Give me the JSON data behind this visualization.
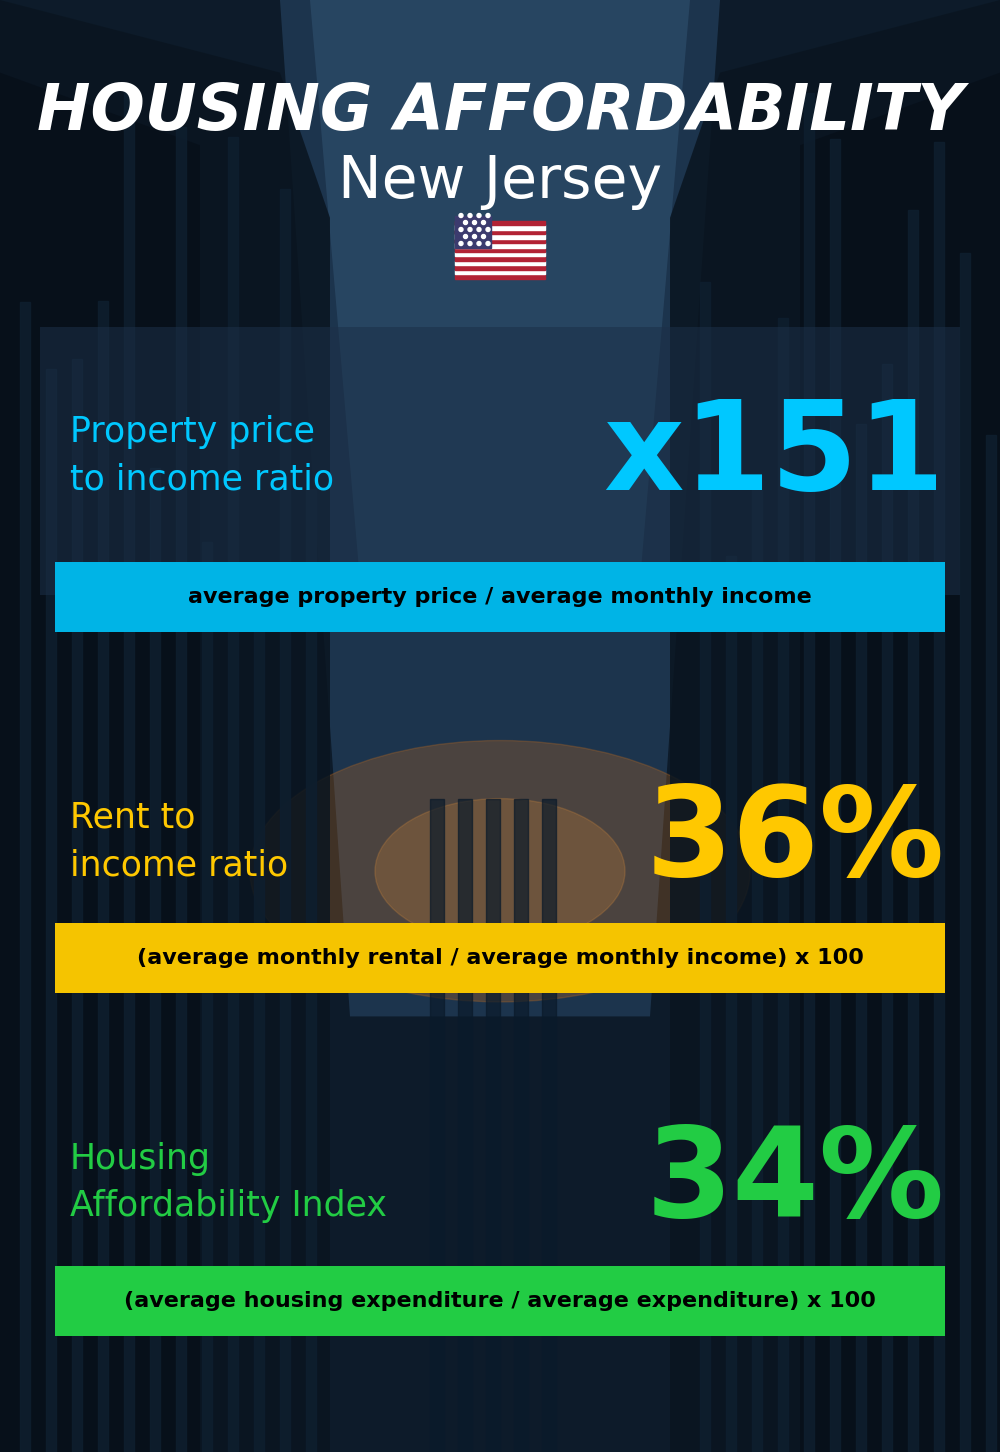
{
  "title_line1": "HOUSING AFFORDABILITY",
  "title_line2": "New Jersey",
  "bg_color": "#0d1b2a",
  "section1_label": "Property price\nto income ratio",
  "section1_value": "x151",
  "section1_label_color": "#00c8ff",
  "section1_value_color": "#00c8ff",
  "section1_band_color": "#00b4e6",
  "section1_band_text": "average property price / average monthly income",
  "section2_label": "Rent to\nincome ratio",
  "section2_value": "36%",
  "section2_label_color": "#ffc800",
  "section2_value_color": "#ffc800",
  "section2_band_color": "#f5c400",
  "section2_band_text": "(average monthly rental / average monthly income) x 100",
  "section3_label": "Housing\nAffordability Index",
  "section3_value": "34%",
  "section3_label_color": "#22cc44",
  "section3_value_color": "#22cc44",
  "section3_band_color": "#22cc44",
  "section3_band_text": "(average housing expenditure / average expenditure) x 100"
}
